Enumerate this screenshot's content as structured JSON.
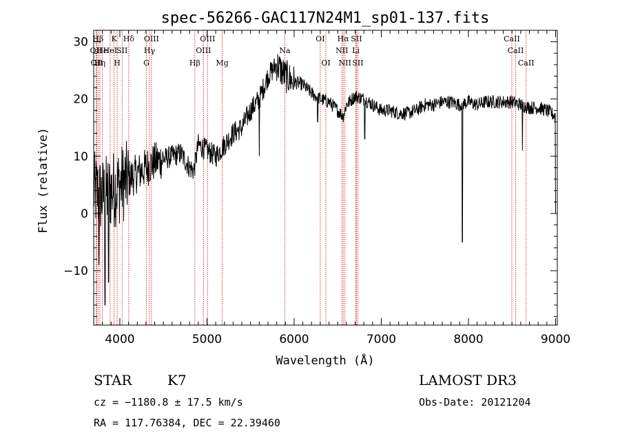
{
  "chart_data": {
    "type": "line",
    "title": "spec-56266-GAC117N24M1_sp01-137.fits",
    "xlabel": "Wavelength (Å)",
    "ylabel": "Flux (relative)",
    "xlim": [
      3700,
      9020
    ],
    "ylim": [
      -19.5,
      32
    ],
    "x_ticks": [
      4000,
      5000,
      6000,
      7000,
      8000,
      9000
    ],
    "y_ticks": [
      -10,
      0,
      10,
      20,
      30
    ],
    "grid": false,
    "line_color": "#000000",
    "marker_color": "#cc0000",
    "spectrum_anchors": {
      "x": [
        3700,
        3800,
        3900,
        4000,
        4100,
        4200,
        4300,
        4400,
        4500,
        4600,
        4700,
        4800,
        4850,
        4900,
        5000,
        5100,
        5200,
        5300,
        5400,
        5500,
        5600,
        5700,
        5800,
        5900,
        6000,
        6100,
        6200,
        6300,
        6400,
        6500,
        6563,
        6600,
        6700,
        6800,
        6900,
        7000,
        7100,
        7200,
        7300,
        7400,
        7500,
        7600,
        7700,
        7800,
        7900,
        8000,
        8100,
        8200,
        8300,
        8400,
        8500,
        8600,
        8700,
        8800,
        8900,
        9000
      ],
      "y": [
        4,
        3,
        4,
        5,
        6,
        7,
        8,
        9,
        9.5,
        10,
        10.5,
        8,
        7.5,
        12,
        11,
        10,
        12,
        14,
        15,
        18,
        20,
        24,
        26,
        24,
        23,
        22.5,
        21,
        20,
        19.5,
        18,
        17,
        19,
        20.5,
        20,
        19,
        18,
        18,
        17.5,
        17.5,
        18,
        19,
        19,
        19.5,
        19.5,
        19,
        19.5,
        19,
        19.5,
        19.5,
        19.5,
        19.5,
        19,
        18.5,
        18.5,
        18,
        17
      ],
      "noise": [
        {
          "from": 3700,
          "to": 4100,
          "amp": 7
        },
        {
          "from": 4100,
          "to": 4500,
          "amp": 3.5
        },
        {
          "from": 4500,
          "to": 5800,
          "amp": 2
        },
        {
          "from": 5800,
          "to": 6000,
          "amp": 3
        },
        {
          "from": 6000,
          "to": 9020,
          "amp": 1.2
        }
      ],
      "dips": [
        {
          "x": 3830,
          "y": -16
        },
        {
          "x": 3870,
          "y": -12
        },
        {
          "x": 3760,
          "y": -9
        },
        {
          "x": 5600,
          "y": 10
        },
        {
          "x": 6270,
          "y": 16
        },
        {
          "x": 6810,
          "y": 13
        },
        {
          "x": 7930,
          "y": -5
        },
        {
          "x": 8620,
          "y": 11
        },
        {
          "x": 9000,
          "y": 0
        }
      ]
    },
    "lines": [
      {
        "wavelength": 3727,
        "label": "OII",
        "row": 1
      },
      {
        "wavelength": 3734,
        "label": "OII",
        "row": 2
      },
      {
        "wavelength": 3750,
        "label": "Hβ",
        "row": 0
      },
      {
        "wavelength": 3771,
        "label": "Hη",
        "row": 2
      },
      {
        "wavelength": 3798,
        "label": "He",
        "row": 1
      },
      {
        "wavelength": 3889,
        "label": "HeI",
        "row": 1
      },
      {
        "wavelength": 3934,
        "label": "K",
        "row": 0
      },
      {
        "wavelength": 3969,
        "label": "H",
        "row": 2
      },
      {
        "wavelength": 4026,
        "label": "SII",
        "row": 1
      },
      {
        "wavelength": 4102,
        "label": "Hδ",
        "row": 0
      },
      {
        "wavelength": 4305,
        "label": "G",
        "row": 2
      },
      {
        "wavelength": 4340,
        "label": "Hγ",
        "row": 1
      },
      {
        "wavelength": 4363,
        "label": "OIII",
        "row": 0
      },
      {
        "wavelength": 4861,
        "label": "Hβ",
        "row": 2
      },
      {
        "wavelength": 4959,
        "label": "OIII",
        "row": 1
      },
      {
        "wavelength": 5007,
        "label": "OIII",
        "row": 0
      },
      {
        "wavelength": 5175,
        "label": "Mg",
        "row": 2
      },
      {
        "wavelength": 5893,
        "label": "Na",
        "row": 1
      },
      {
        "wavelength": 6300,
        "label": "OI",
        "row": 0
      },
      {
        "wavelength": 6364,
        "label": "OI",
        "row": 2
      },
      {
        "wavelength": 6548,
        "label": "NII",
        "row": 1
      },
      {
        "wavelength": 6563,
        "label": "Hα",
        "row": 0
      },
      {
        "wavelength": 6583,
        "label": "NII",
        "row": 2
      },
      {
        "wavelength": 6708,
        "label": "Li",
        "row": 1
      },
      {
        "wavelength": 6716,
        "label": "SII",
        "row": 0
      },
      {
        "wavelength": 6731,
        "label": "SII",
        "row": 2
      },
      {
        "wavelength": 8498,
        "label": "CaII",
        "row": 0
      },
      {
        "wavelength": 8542,
        "label": "CaII",
        "row": 1
      },
      {
        "wavelength": 8662,
        "label": "CaII",
        "row": 2
      }
    ]
  },
  "info": {
    "object_class": "STAR",
    "subclass": "K7",
    "survey": "LAMOST DR3",
    "redshift": "cz = −1180.8 ± 17.5 km/s",
    "obs_date": "Obs-Date: 20121204",
    "coords": "RA = 117.76384, DEC =  22.39460"
  }
}
